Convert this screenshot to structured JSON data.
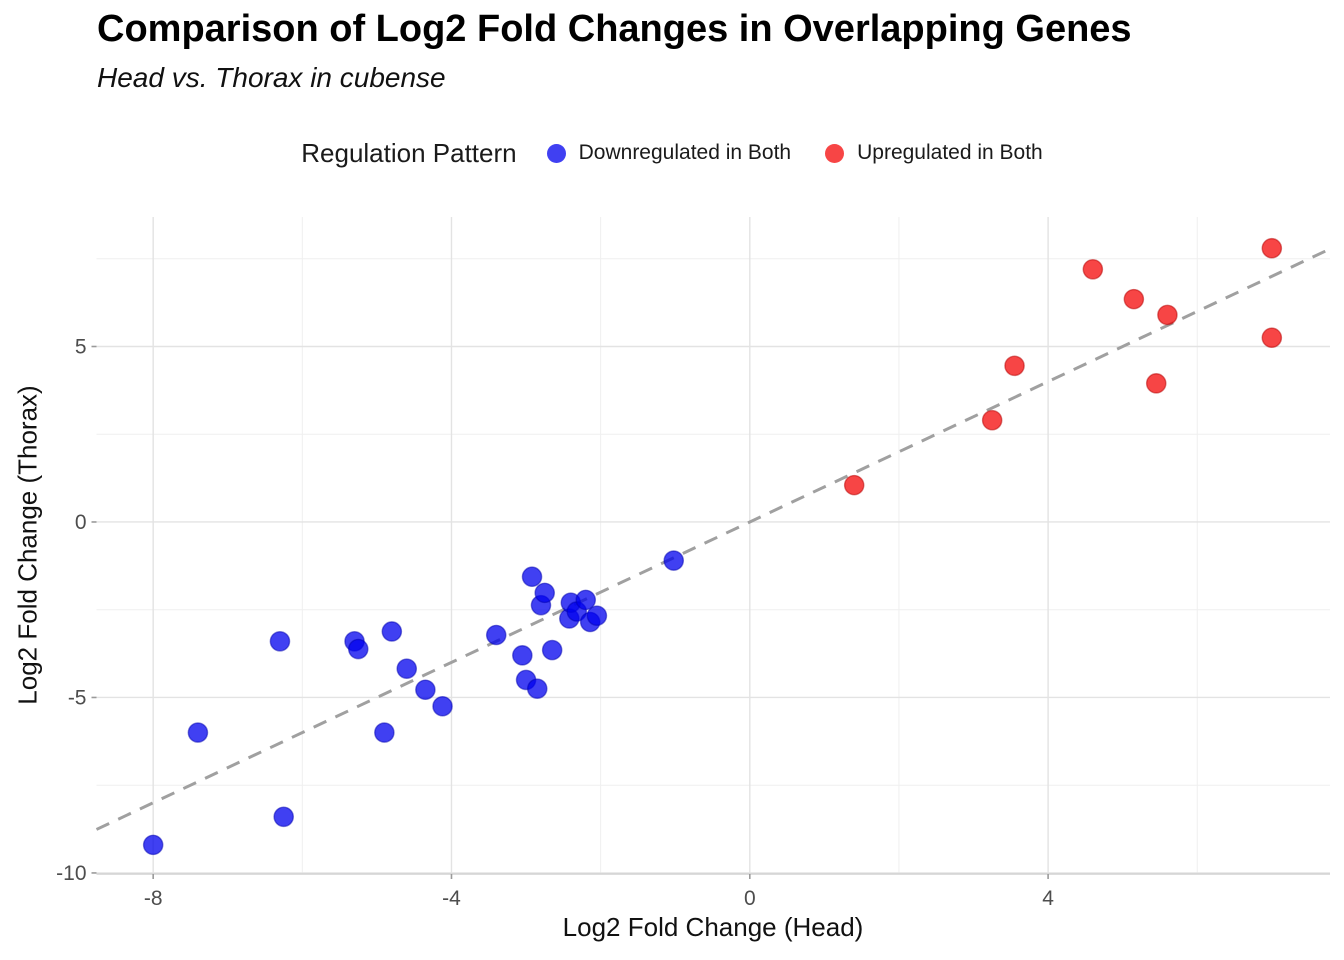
{
  "header": {
    "title": "Comparison of Log2 Fold Changes in Overlapping Genes",
    "subtitle": "Head vs. Thorax in cubense"
  },
  "chart_data": {
    "type": "scatter",
    "title": "Comparison of Log2 Fold Changes in Overlapping Genes",
    "subtitle": "Head vs. Thorax in cubense",
    "xlabel": "Log2 Fold Change (Head)",
    "ylabel": "Log2 Fold Change (Thorax)",
    "xlim": [
      -8.76,
      7.78
    ],
    "ylim": [
      -10.03,
      8.69
    ],
    "x_major_ticks": [
      -8,
      -4,
      0,
      4
    ],
    "x_minor_ticks": [
      -6,
      -2,
      2,
      6
    ],
    "y_major_ticks": [
      5,
      0,
      -5,
      -10
    ],
    "y_minor_ticks": [
      7.5,
      2.5,
      -2.5,
      -7.5
    ],
    "grid": "on",
    "legend_position": "top",
    "legend_title": "Regulation Pattern",
    "reference_line": {
      "equation": "y = x",
      "slope": 1,
      "intercept": 0,
      "style": "dashed",
      "color": "#a0a0a0"
    },
    "series": [
      {
        "name": "Downregulated in Both",
        "color": "#0000EE",
        "alpha": 0.75,
        "points": [
          [
            -8.0,
            -9.2
          ],
          [
            -7.4,
            -6.0
          ],
          [
            -6.3,
            -3.4
          ],
          [
            -6.25,
            -8.4
          ],
          [
            -5.3,
            -3.4
          ],
          [
            -5.25,
            -3.62
          ],
          [
            -4.9,
            -6.0
          ],
          [
            -4.8,
            -3.12
          ],
          [
            -4.6,
            -4.18
          ],
          [
            -4.35,
            -4.78
          ],
          [
            -4.12,
            -5.25
          ],
          [
            -3.4,
            -3.22
          ],
          [
            -3.05,
            -3.8
          ],
          [
            -3.0,
            -4.5
          ],
          [
            -2.92,
            -1.56
          ],
          [
            -2.85,
            -4.75
          ],
          [
            -2.8,
            -2.37
          ],
          [
            -2.75,
            -2.02
          ],
          [
            -2.65,
            -3.65
          ],
          [
            -2.42,
            -2.75
          ],
          [
            -2.4,
            -2.3
          ],
          [
            -2.32,
            -2.55
          ],
          [
            -2.2,
            -2.22
          ],
          [
            -2.14,
            -2.85
          ],
          [
            -2.05,
            -2.67
          ],
          [
            -1.02,
            -1.1
          ]
        ]
      },
      {
        "name": "Upregulated in Both",
        "color": "#F50D0D",
        "alpha": 0.77,
        "points": [
          [
            1.4,
            1.05
          ],
          [
            3.25,
            2.9
          ],
          [
            3.55,
            4.45
          ],
          [
            4.6,
            7.2
          ],
          [
            5.15,
            6.35
          ],
          [
            5.45,
            3.95
          ],
          [
            5.6,
            5.9
          ],
          [
            7.0,
            7.8
          ],
          [
            7.0,
            5.25
          ]
        ]
      }
    ],
    "colors": {
      "major_grid": "#e3e3e3",
      "minor_grid": "#efefef",
      "axis_line": "#d2d2d2",
      "tick_mark": "#9a9a9a",
      "tick_label": "#4d4d4d"
    }
  }
}
